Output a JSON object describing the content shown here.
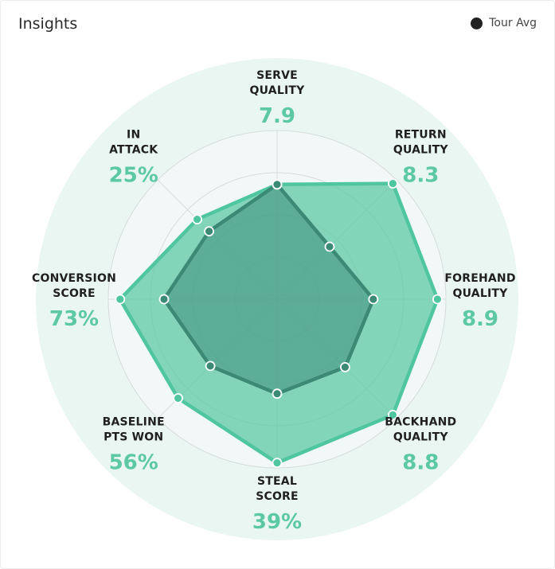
{
  "header": {
    "title": "Insights"
  },
  "legend": {
    "label": "Tour Avg"
  },
  "colors": {
    "outer_bg": "#e9f6f2",
    "inner_bg": "#f1f8f7",
    "grid": "#d6dcdb",
    "player_fill": "#5cc9a4",
    "player_line": "#4fc6a0",
    "avg_fill": "#3f8e7a",
    "avg_line": "#3a8a75",
    "value_text": "#5cc9a4"
  },
  "chart_data": {
    "type": "radar",
    "title": "Insights",
    "axes": [
      {
        "label": [
          "SERVE",
          "QUALITY"
        ],
        "value_text": "7.9"
      },
      {
        "label": [
          "RETURN",
          "QUALITY"
        ],
        "value_text": "8.3"
      },
      {
        "label": [
          "FOREHAND",
          "QUALITY"
        ],
        "value_text": "8.9"
      },
      {
        "label": [
          "BACKHAND",
          "QUALITY"
        ],
        "value_text": "8.8"
      },
      {
        "label": [
          "STEAL",
          "SCORE"
        ],
        "value_text": "39%"
      },
      {
        "label": [
          "BASELINE",
          "PTS WON"
        ],
        "value_text": "56%"
      },
      {
        "label": [
          "CONVERSION",
          "SCORE"
        ],
        "value_text": "73%"
      },
      {
        "label": [
          "IN",
          "ATTACK"
        ],
        "value_text": "25%"
      }
    ],
    "rings": 4,
    "max": 1,
    "series": [
      {
        "values": [
          0.68,
          0.97,
          0.95,
          0.97,
          0.97,
          0.83,
          0.93,
          0.67
        ]
      },
      {
        "name": "Tour Avg",
        "values": [
          0.68,
          0.44,
          0.57,
          0.57,
          0.56,
          0.56,
          0.67,
          0.57
        ]
      }
    ]
  }
}
